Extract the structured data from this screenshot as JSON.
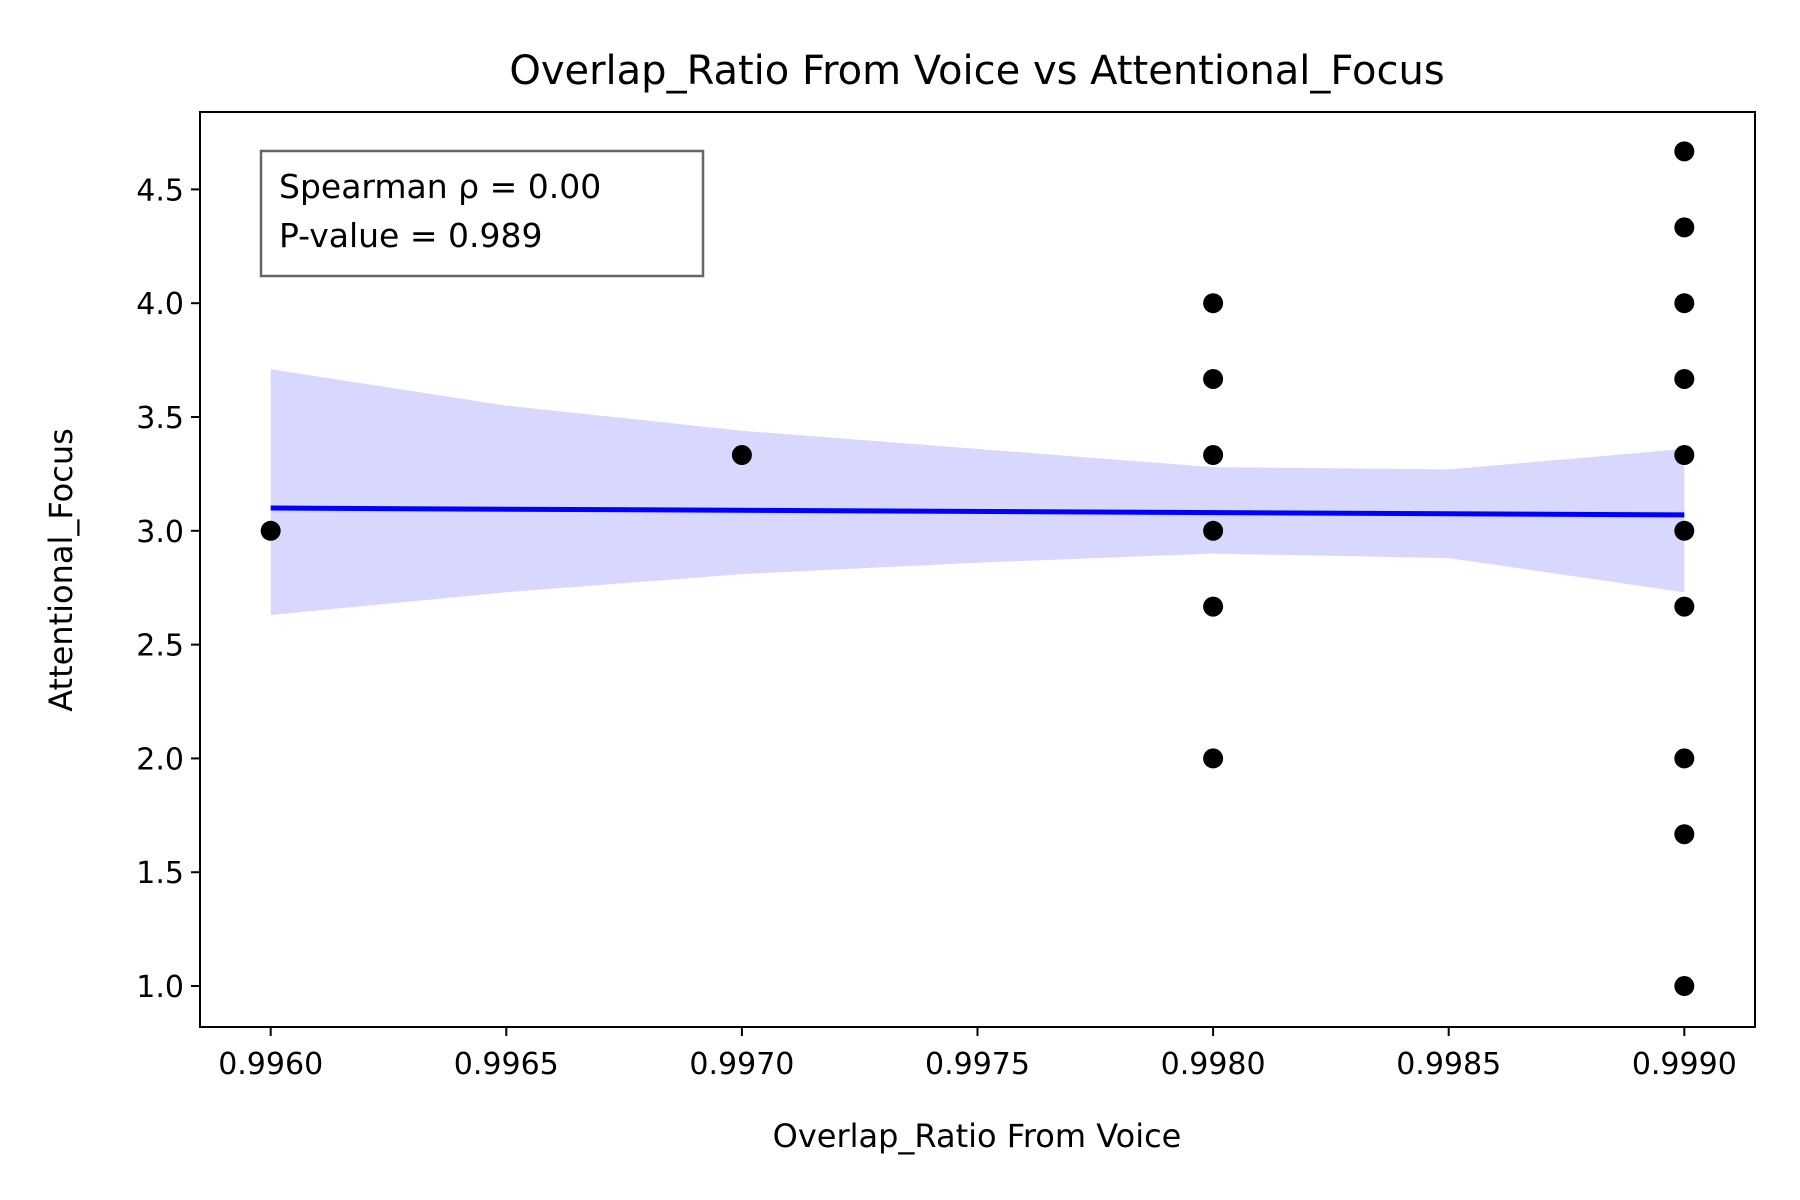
{
  "chart_data": {
    "type": "scatter",
    "title": "Overlap_Ratio From Voice vs Attentional_Focus",
    "xlabel": "Overlap_Ratio From Voice",
    "ylabel": "Attentional_Focus",
    "xlim": [
      0.99585,
      0.99915
    ],
    "ylim": [
      0.82,
      4.84
    ],
    "xticks": [
      0.996,
      0.9965,
      0.997,
      0.9975,
      0.998,
      0.9985,
      0.999
    ],
    "xtick_labels": [
      "0.9960",
      "0.9965",
      "0.9970",
      "0.9975",
      "0.9980",
      "0.9985",
      "0.9990"
    ],
    "yticks": [
      1.0,
      1.5,
      2.0,
      2.5,
      3.0,
      3.5,
      4.0,
      4.5
    ],
    "ytick_labels": [
      "1.0",
      "1.5",
      "2.0",
      "2.5",
      "3.0",
      "3.5",
      "4.0",
      "4.5"
    ],
    "grid": false,
    "points": {
      "x": [
        0.996,
        0.997,
        0.998,
        0.998,
        0.998,
        0.998,
        0.998,
        0.998,
        0.999,
        0.999,
        0.999,
        0.999,
        0.999,
        0.999,
        0.999,
        0.999,
        0.999,
        0.999
      ],
      "y": [
        3.0,
        3.333,
        4.0,
        3.667,
        3.333,
        3.0,
        2.667,
        2.0,
        4.667,
        4.333,
        4.0,
        3.667,
        3.333,
        3.0,
        2.667,
        2.0,
        1.667,
        1.0
      ],
      "color": "#000000"
    },
    "regression_line": {
      "x": [
        0.996,
        0.999
      ],
      "y": [
        3.1,
        3.07
      ],
      "color": "#0000ff"
    },
    "confidence_band": {
      "x": [
        0.996,
        0.9965,
        0.997,
        0.9975,
        0.998,
        0.9985,
        0.999
      ],
      "upper": [
        3.71,
        3.55,
        3.44,
        3.36,
        3.28,
        3.27,
        3.36
      ],
      "lower": [
        2.63,
        2.73,
        2.81,
        2.86,
        2.9,
        2.88,
        2.73
      ],
      "color": "#d8d8ff"
    },
    "annotation": {
      "lines": [
        "Spearman ρ = 0.00",
        "P-value = 0.989"
      ],
      "placement": "top-left"
    }
  }
}
